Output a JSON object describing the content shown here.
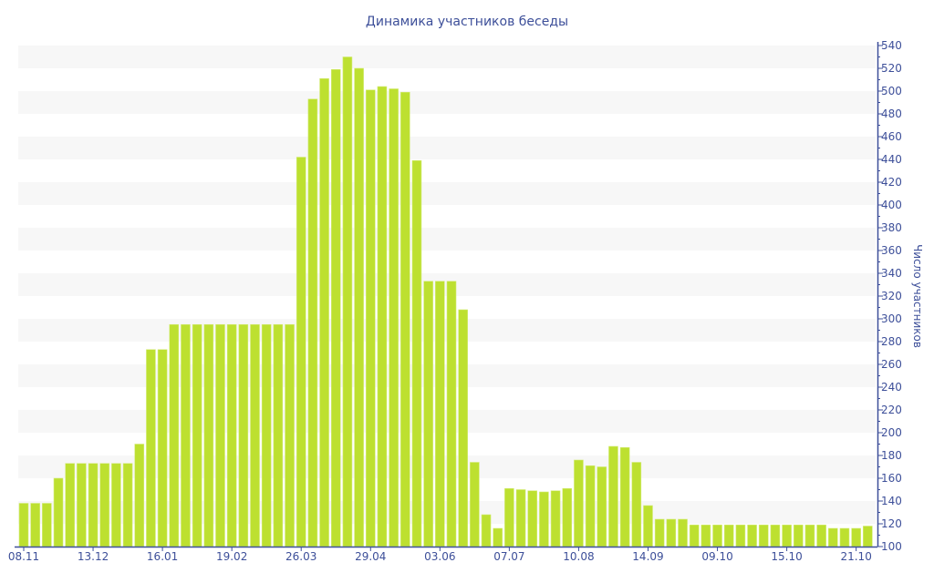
{
  "chart_data": {
    "type": "bar",
    "title": "Динамика участников беседы",
    "xlabel": "",
    "ylabel": "Число участников",
    "ylim": [
      100,
      540
    ],
    "y_ticks": [
      100,
      120,
      140,
      160,
      180,
      200,
      220,
      240,
      260,
      280,
      300,
      320,
      340,
      360,
      380,
      400,
      420,
      440,
      460,
      480,
      500,
      520,
      540
    ],
    "y_axis_position": "right",
    "grid": "alternating horizontal bands",
    "legend": "none",
    "x_tick_labels": [
      {
        "index": 0,
        "label": "08.11"
      },
      {
        "index": 6,
        "label": "13.12"
      },
      {
        "index": 12,
        "label": "16.01"
      },
      {
        "index": 18,
        "label": "19.02"
      },
      {
        "index": 24,
        "label": "26.03"
      },
      {
        "index": 30,
        "label": "29.04"
      },
      {
        "index": 36,
        "label": "03.06"
      },
      {
        "index": 42,
        "label": "07.07"
      },
      {
        "index": 48,
        "label": "10.08"
      },
      {
        "index": 54,
        "label": "14.09"
      },
      {
        "index": 60,
        "label": "09.10"
      },
      {
        "index": 66,
        "label": "15.10"
      },
      {
        "index": 72,
        "label": "21.10"
      }
    ],
    "values": [
      138,
      138,
      138,
      160,
      173,
      173,
      173,
      173,
      173,
      173,
      190,
      273,
      273,
      295,
      295,
      295,
      295,
      295,
      295,
      295,
      295,
      295,
      295,
      295,
      442,
      493,
      511,
      519,
      530,
      520,
      501,
      504,
      502,
      499,
      439,
      333,
      333,
      333,
      308,
      174,
      128,
      116,
      151,
      150,
      149,
      148,
      149,
      151,
      176,
      171,
      170,
      188,
      187,
      174,
      136,
      124,
      124,
      124,
      119,
      119,
      119,
      119,
      119,
      119,
      119,
      119,
      119,
      119,
      119,
      119,
      116,
      116,
      116,
      118
    ],
    "colors": {
      "bar": "#bde030",
      "bar_edge": "#d4ec7a",
      "axis": "#3d4f99",
      "band": "#f7f7f7"
    }
  }
}
